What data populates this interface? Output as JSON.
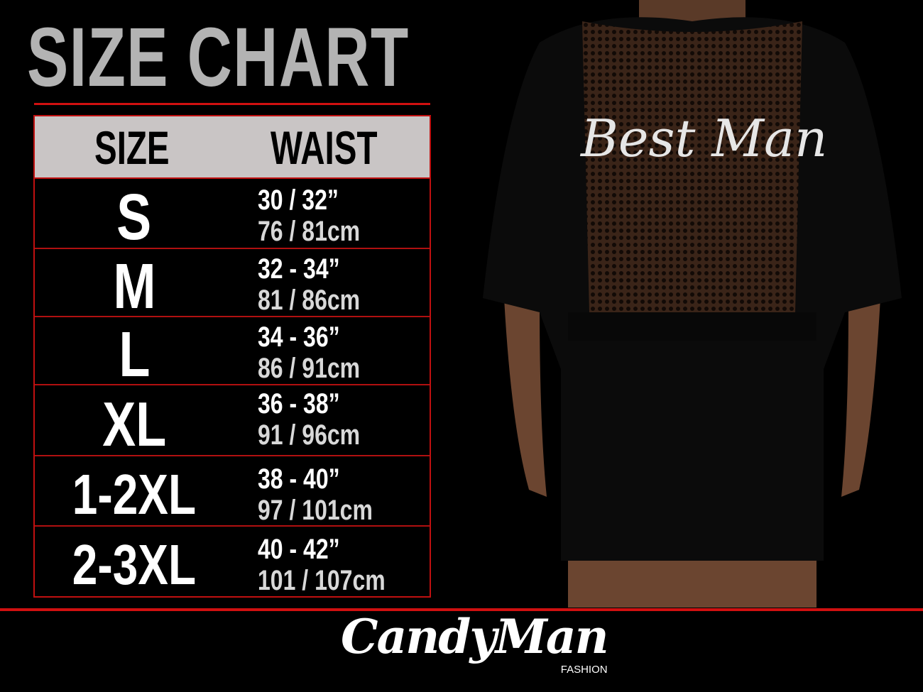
{
  "title": "SIZE CHART",
  "table": {
    "headers": [
      "SIZE",
      "WAIST"
    ],
    "rows": [
      {
        "size": "S",
        "inches": "30 / 32”",
        "cm": "76 / 81cm"
      },
      {
        "size": "M",
        "inches": "32 - 34”",
        "cm": "81 / 86cm"
      },
      {
        "size": "L",
        "inches": "34 - 36”",
        "cm": "86 / 91cm"
      },
      {
        "size": "XL",
        "inches": "36 - 38”",
        "cm": "91 / 96cm"
      },
      {
        "size": "1-2XL",
        "inches": "38 - 40”",
        "cm": "97 / 101cm"
      },
      {
        "size": "2-3XL",
        "inches": "40 - 42”",
        "cm": "101 / 107cm"
      }
    ]
  },
  "product_print": "Best Man",
  "brand": {
    "name": "CandyMan",
    "sub": "FASHION"
  },
  "colors": {
    "accent": "#d01010",
    "header_bg": "#c9c5c5",
    "title": "#b3b3b3"
  }
}
